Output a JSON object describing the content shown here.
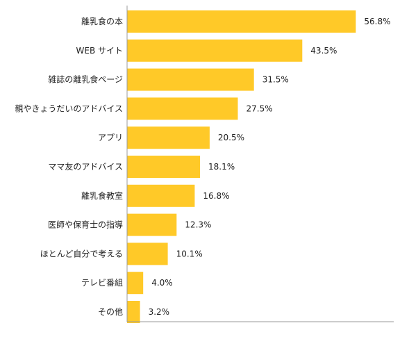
{
  "chart_data": {
    "type": "bar",
    "orientation": "horizontal",
    "categories": [
      "離乳食の本",
      "WEB サイト",
      "雑誌の離乳食ページ",
      "親やきょうだいのアドバイス",
      "アプリ",
      "ママ友のアドバイス",
      "離乳食教室",
      "医師や保育士の指導",
      "ほとんど自分で考える",
      "テレビ番組",
      "その他"
    ],
    "values": [
      56.8,
      43.5,
      31.5,
      27.5,
      20.5,
      18.1,
      16.8,
      12.3,
      10.1,
      4.0,
      3.2
    ],
    "value_labels": [
      "56.8%",
      "43.5%",
      "31.5%",
      "27.5%",
      "20.5%",
      "18.1%",
      "16.8%",
      "12.3%",
      "10.1%",
      "4.0%",
      "3.2%"
    ],
    "title": "",
    "xlabel": "",
    "ylabel": "",
    "xlim": [
      0,
      70
    ],
    "grid": false,
    "legend": "none"
  },
  "colors": {
    "bar": "#FFC928",
    "axis": "#9a9a9a",
    "text": "#222222"
  }
}
